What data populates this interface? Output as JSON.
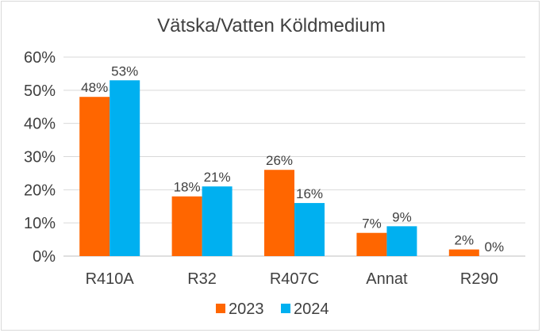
{
  "chart_data": {
    "type": "bar",
    "title": "Vätska/Vatten Köldmedium",
    "categories": [
      "R410A",
      "R32",
      "R407C",
      "Annat",
      "R290"
    ],
    "series": [
      {
        "name": "2023",
        "color": "#ff6600",
        "values": [
          48,
          18,
          26,
          7,
          2
        ],
        "labels": [
          "48%",
          "18%",
          "26%",
          "7%",
          "2%"
        ]
      },
      {
        "name": "2024",
        "color": "#00b0f0",
        "values": [
          53,
          21,
          16,
          9,
          0
        ],
        "labels": [
          "53%",
          "21%",
          "16%",
          "9%",
          "0%"
        ]
      }
    ],
    "ylim": [
      0,
      60
    ],
    "yticks": [
      0,
      10,
      20,
      30,
      40,
      50,
      60
    ],
    "ytick_labels": [
      "0%",
      "10%",
      "20%",
      "30%",
      "40%",
      "50%",
      "60%"
    ],
    "xlabel": "",
    "ylabel": "",
    "grid": true,
    "legend_position": "bottom"
  }
}
